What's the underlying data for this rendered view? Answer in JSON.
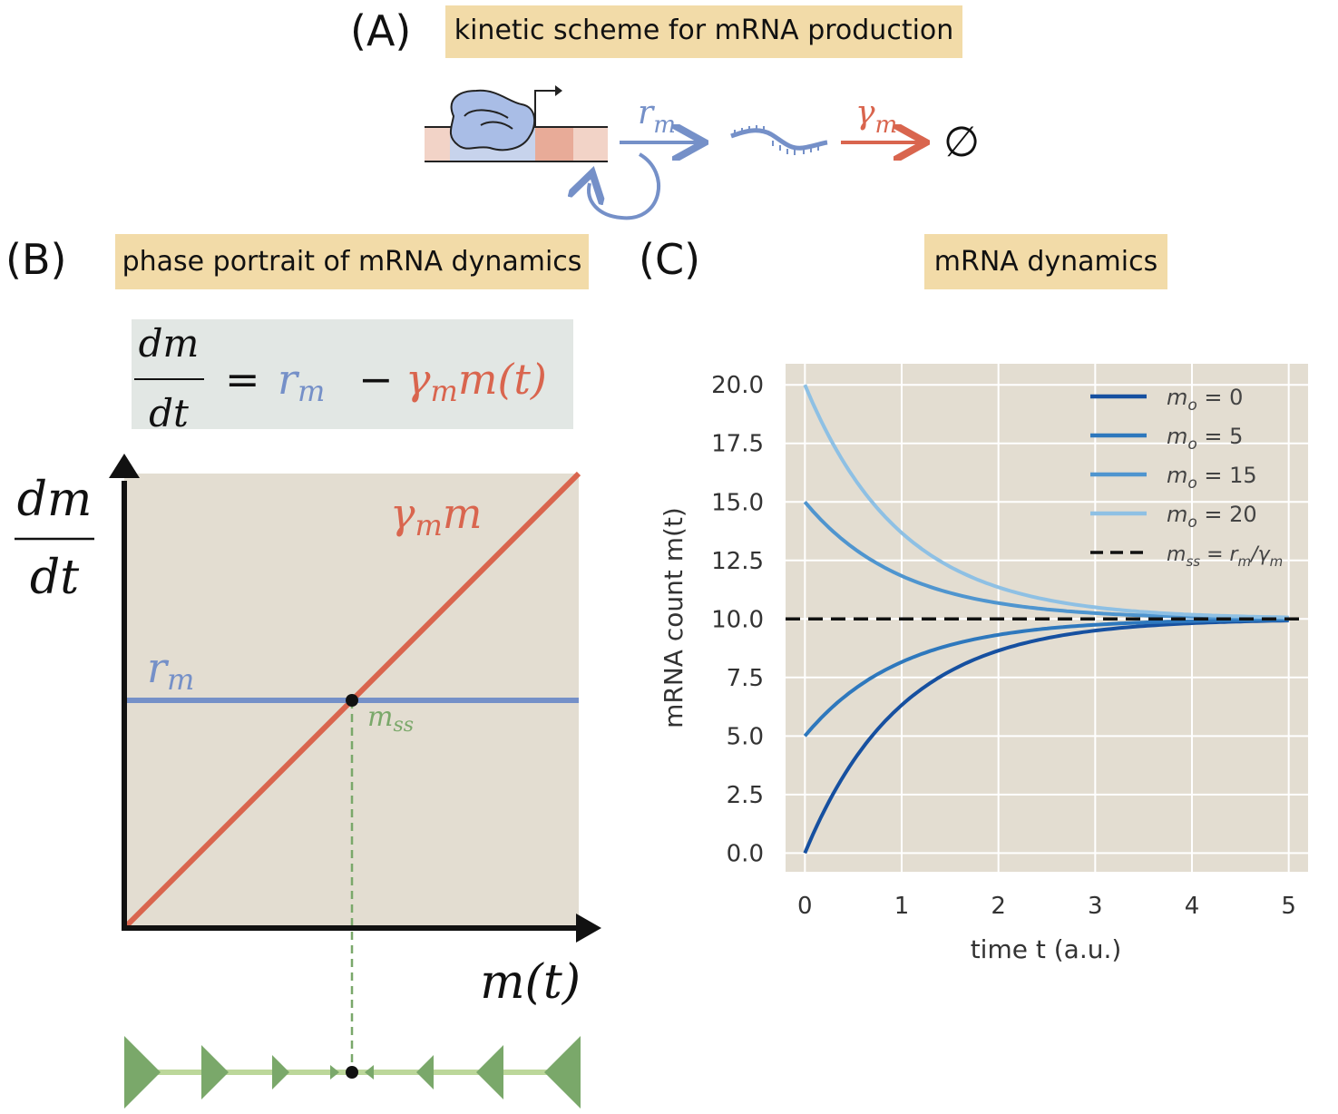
{
  "panel_a": {
    "label": "(A)",
    "title": "kinetic scheme for mRNA production",
    "rate_r": "r",
    "rate_r_sub": "m",
    "rate_gamma": "γ",
    "rate_gamma_sub": "m",
    "null_symbol": "∅"
  },
  "panel_b": {
    "label": "(B)",
    "title": "phase portrait of mRNA dynamics",
    "equation": {
      "numerator": "dm",
      "denominator": "dt",
      "equals": "=",
      "r": "r",
      "r_sub": "m",
      "minus": "−",
      "gamma": "γ",
      "gamma_sub": "m",
      "m_t": "m(t)"
    },
    "ylabel_num": "dm",
    "ylabel_den": "dt",
    "xlabel": "m(t)",
    "line_gamma_label": "γ",
    "line_gamma_sub": "m",
    "line_gamma_m": "m",
    "line_r_label": "r",
    "line_r_sub": "m",
    "mss_label": "m",
    "mss_sub": "ss"
  },
  "panel_c": {
    "label": "(C)",
    "title": "mRNA dynamics"
  },
  "colors": {
    "title_box": "#f2dba8",
    "eq_box": "#e2e7e4",
    "plot_bg": "#e3ddd1",
    "blue": "#7590c8",
    "red": "#d9654e",
    "green": "#7aa86a",
    "green_light": "#bcd79a",
    "m0_0": "#1650a0",
    "m0_5": "#2e78bd",
    "m0_15": "#4f95cf",
    "m0_20": "#8ec0e4"
  },
  "chart_data": {
    "type": "line",
    "xlabel": "time  t (a.u.)",
    "ylabel": "mRNA count  m(t)",
    "xlim": [
      -0.2,
      5.2
    ],
    "ylim": [
      -0.8,
      20.9
    ],
    "xticks": [
      "0",
      "1",
      "2",
      "3",
      "4",
      "5"
    ],
    "yticks": [
      "0.0",
      "2.5",
      "5.0",
      "7.5",
      "10.0",
      "12.5",
      "15.0",
      "17.5",
      "20.0"
    ],
    "grid": true,
    "legend_position": "top-right",
    "steady_state": 10,
    "decay_rate": 1,
    "x_max": 5,
    "series": [
      {
        "name": "mo = 0",
        "m0": 0
      },
      {
        "name": "mo = 5",
        "m0": 5
      },
      {
        "name": "mo = 15",
        "m0": 15
      },
      {
        "name": "mo = 20",
        "m0": 20
      }
    ],
    "ss_legend": "mss = rm/γm"
  }
}
